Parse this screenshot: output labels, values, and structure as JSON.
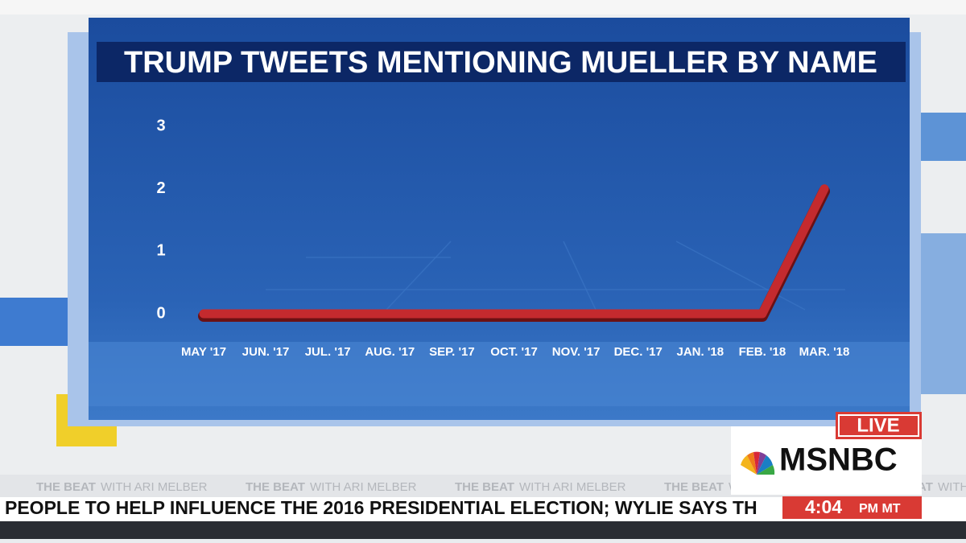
{
  "chart_data": {
    "type": "line",
    "title": "TRUMP TWEETS MENTIONING MUELLER BY NAME",
    "categories": [
      "MAY '17",
      "JUN. '17",
      "JUL. '17",
      "AUG. '17",
      "SEP. '17",
      "OCT. '17",
      "NOV. '17",
      "DEC. '17",
      "JAN. '18",
      "FEB. '18",
      "MAR. '18"
    ],
    "values": [
      0,
      0,
      0,
      0,
      0,
      0,
      0,
      0,
      0,
      0,
      2
    ],
    "color": "#c42a2e",
    "ylim": [
      0,
      3
    ],
    "yticks": [
      0,
      1,
      2,
      3
    ],
    "grid": false
  },
  "broadcast": {
    "live": "LIVE",
    "network": "MSNBC",
    "show": "THE BEAT",
    "host": "WITH ARI MELBER",
    "ticker": "PEOPLE TO HELP INFLUENCE THE 2016 PRESIDENTIAL ELECTION; WYLIE SAYS TH",
    "time": "4:04",
    "time_zone": "PM MT"
  }
}
